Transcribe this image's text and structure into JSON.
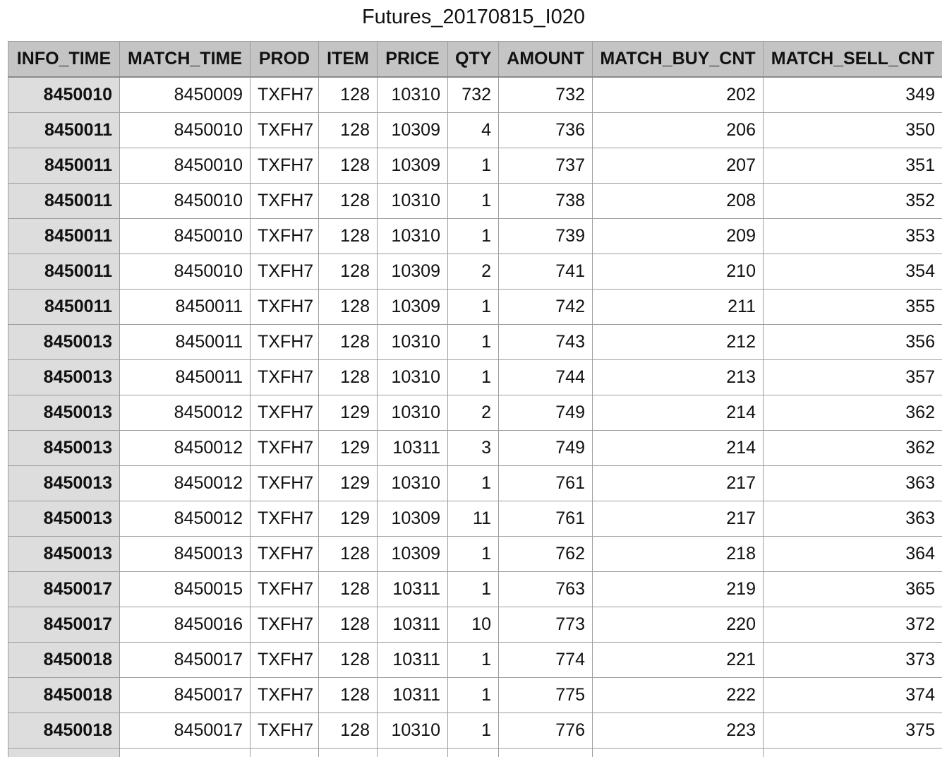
{
  "sheet": {
    "title": "Futures_20170815_I020"
  },
  "table": {
    "columns": [
      "INFO_TIME",
      "MATCH_TIME",
      "PROD",
      "ITEM",
      "PRICE",
      "QTY",
      "AMOUNT",
      "MATCH_BUY_CNT",
      "MATCH_SELL_CNT"
    ],
    "rows": [
      [
        "8450010",
        "8450009",
        "TXFH7",
        "128",
        "10310",
        "732",
        "732",
        "202",
        "349"
      ],
      [
        "8450011",
        "8450010",
        "TXFH7",
        "128",
        "10309",
        "4",
        "736",
        "206",
        "350"
      ],
      [
        "8450011",
        "8450010",
        "TXFH7",
        "128",
        "10309",
        "1",
        "737",
        "207",
        "351"
      ],
      [
        "8450011",
        "8450010",
        "TXFH7",
        "128",
        "10310",
        "1",
        "738",
        "208",
        "352"
      ],
      [
        "8450011",
        "8450010",
        "TXFH7",
        "128",
        "10310",
        "1",
        "739",
        "209",
        "353"
      ],
      [
        "8450011",
        "8450010",
        "TXFH7",
        "128",
        "10309",
        "2",
        "741",
        "210",
        "354"
      ],
      [
        "8450011",
        "8450011",
        "TXFH7",
        "128",
        "10309",
        "1",
        "742",
        "211",
        "355"
      ],
      [
        "8450013",
        "8450011",
        "TXFH7",
        "128",
        "10310",
        "1",
        "743",
        "212",
        "356"
      ],
      [
        "8450013",
        "8450011",
        "TXFH7",
        "128",
        "10310",
        "1",
        "744",
        "213",
        "357"
      ],
      [
        "8450013",
        "8450012",
        "TXFH7",
        "129",
        "10310",
        "2",
        "749",
        "214",
        "362"
      ],
      [
        "8450013",
        "8450012",
        "TXFH7",
        "129",
        "10311",
        "3",
        "749",
        "214",
        "362"
      ],
      [
        "8450013",
        "8450012",
        "TXFH7",
        "129",
        "10310",
        "1",
        "761",
        "217",
        "363"
      ],
      [
        "8450013",
        "8450012",
        "TXFH7",
        "129",
        "10309",
        "11",
        "761",
        "217",
        "363"
      ],
      [
        "8450013",
        "8450013",
        "TXFH7",
        "128",
        "10309",
        "1",
        "762",
        "218",
        "364"
      ],
      [
        "8450017",
        "8450015",
        "TXFH7",
        "128",
        "10311",
        "1",
        "763",
        "219",
        "365"
      ],
      [
        "8450017",
        "8450016",
        "TXFH7",
        "128",
        "10311",
        "10",
        "773",
        "220",
        "372"
      ],
      [
        "8450018",
        "8450017",
        "TXFH7",
        "128",
        "10311",
        "1",
        "774",
        "221",
        "373"
      ],
      [
        "8450018",
        "8450017",
        "TXFH7",
        "128",
        "10311",
        "1",
        "775",
        "222",
        "374"
      ],
      [
        "8450018",
        "8450017",
        "TXFH7",
        "128",
        "10310",
        "1",
        "776",
        "223",
        "375"
      ],
      [
        "",
        "",
        "",
        "",
        "",
        "",
        "",
        "",
        ""
      ]
    ]
  }
}
